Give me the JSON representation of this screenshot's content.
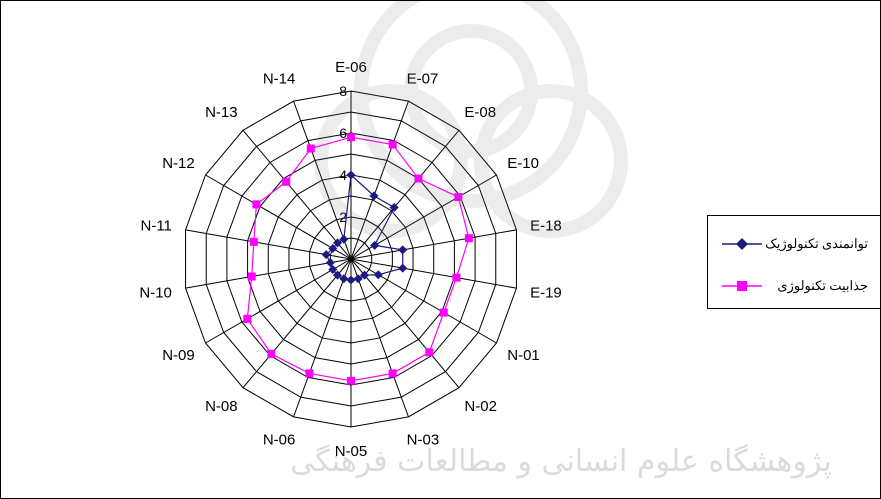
{
  "chart_data": {
    "type": "radar",
    "categories": [
      "E-06",
      "E-07",
      "E-08",
      "E-10",
      "E-18",
      "E-19",
      "N-01",
      "N-02",
      "N-03",
      "N-05",
      "N-06",
      "N-08",
      "N-09",
      "N-10",
      "N-11",
      "N-12",
      "N-13",
      "N-14"
    ],
    "radial_ticks": [
      "2",
      "4",
      "6",
      "8"
    ],
    "rmax": 8,
    "rings": 8,
    "series": [
      {
        "name": "توانمندی تکنولوژیک",
        "color": "#1a1a80",
        "marker": "diamond",
        "values": [
          4.0,
          3.2,
          3.2,
          1.3,
          2.5,
          2.5,
          1.5,
          1.0,
          1.0,
          1.0,
          1.0,
          1.0,
          1.0,
          1.0,
          1.2,
          1.0,
          1.0,
          1.0
        ]
      },
      {
        "name": "جذابیت تکنولوژی",
        "color": "#ff00ff",
        "marker": "square",
        "values": [
          5.8,
          5.8,
          5.0,
          5.9,
          5.7,
          5.1,
          5.1,
          5.8,
          5.8,
          5.8,
          5.8,
          5.9,
          5.7,
          4.8,
          4.7,
          5.2,
          4.8,
          5.6
        ]
      }
    ],
    "legend_position": "right",
    "grid": true
  },
  "watermark": "پژوهشگاه علوم انسانی و مطالعات فرهنگی"
}
